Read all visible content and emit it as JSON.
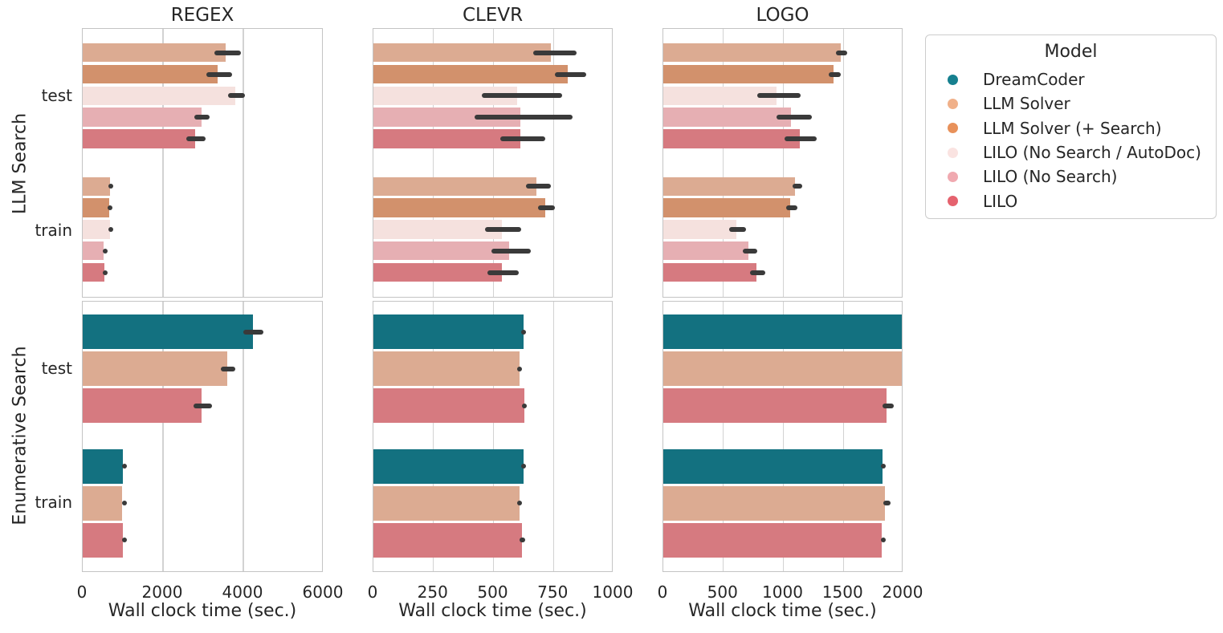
{
  "figure": {
    "background": "#ffffff"
  },
  "colors": {
    "text": "#262626",
    "grid": "#d2d2d2",
    "spine": "#c4c4c4",
    "error_bar": "#3a3a3a",
    "bars": {
      "dreamcoder": "#137180",
      "llm_solver": "#dcab92",
      "llm_solver_search": "#d2916c",
      "lilo_nosearch_autodoc": "#f5e1de",
      "lilo_nosearch": "#e6afb3",
      "lilo": "#d67a80"
    },
    "legend_markers": {
      "dreamcoder": "#16808f",
      "llm_solver": "#f0b089",
      "llm_solver_search": "#e8915a",
      "lilo_nosearch_autodoc": "#fae3e1",
      "lilo_nosearch": "#f0a9b0",
      "lilo": "#e5626e"
    }
  },
  "legend": {
    "title": "Model",
    "items": [
      {
        "key": "dreamcoder",
        "label": "DreamCoder"
      },
      {
        "key": "llm_solver",
        "label": "LLM Solver"
      },
      {
        "key": "llm_solver_search",
        "label": "LLM Solver (+ Search)"
      },
      {
        "key": "lilo_nosearch_autodoc",
        "label": "LILO (No Search / AutoDoc)"
      },
      {
        "key": "lilo_nosearch",
        "label": "LILO (No Search)"
      },
      {
        "key": "lilo",
        "label": "LILO"
      }
    ]
  },
  "chart_data": [
    {
      "type": "bar",
      "orientation": "horizontal",
      "title": "REGEX",
      "row_label": "LLM Search",
      "xlabel": "",
      "xlim": [
        0,
        6000
      ],
      "xticks": [
        0,
        2000,
        4000,
        6000
      ],
      "groups": [
        "test",
        "train"
      ],
      "series": [
        {
          "key": "llm_solver",
          "name": "LLM Solver",
          "values": [
            3560,
            680
          ],
          "errors": [
            [
              3280,
              3940
            ],
            [
              640,
              740
            ]
          ]
        },
        {
          "key": "llm_solver_search",
          "name": "LLM Solver (+ Search)",
          "values": [
            3360,
            660
          ],
          "errors": [
            [
              3080,
              3720
            ],
            [
              620,
              700
            ]
          ]
        },
        {
          "key": "lilo_nosearch_autodoc",
          "name": "LILO (No Search / AutoDoc)",
          "values": [
            3800,
            670
          ],
          "errors": [
            [
              3620,
              4040
            ],
            [
              630,
              710
            ]
          ]
        },
        {
          "key": "lilo_nosearch",
          "name": "LILO (No Search)",
          "values": [
            2960,
            520
          ],
          "errors": [
            [
              2780,
              3160
            ],
            [
              490,
              550
            ]
          ]
        },
        {
          "key": "lilo",
          "name": "LILO",
          "values": [
            2800,
            530
          ],
          "errors": [
            [
              2580,
              3060
            ],
            [
              495,
              565
            ]
          ]
        }
      ]
    },
    {
      "type": "bar",
      "orientation": "horizontal",
      "title": "CLEVR",
      "row_label": "LLM Search",
      "xlabel": "",
      "xlim": [
        0,
        1000
      ],
      "xticks": [
        0,
        250,
        500,
        750,
        1000
      ],
      "groups": [
        "test",
        "train"
      ],
      "series": [
        {
          "key": "llm_solver",
          "name": "LLM Solver",
          "values": [
            740,
            680
          ],
          "errors": [
            [
              665,
              845
            ],
            [
              635,
              740
            ]
          ]
        },
        {
          "key": "llm_solver_search",
          "name": "LLM Solver (+ Search)",
          "values": [
            810,
            715
          ],
          "errors": [
            [
              755,
              885
            ],
            [
              685,
              755
            ]
          ]
        },
        {
          "key": "lilo_nosearch_autodoc",
          "name": "LILO (No Search / AutoDoc)",
          "values": [
            600,
            535
          ],
          "errors": [
            [
              450,
              785
            ],
            [
              465,
              615
            ]
          ]
        },
        {
          "key": "lilo_nosearch",
          "name": "LILO (No Search)",
          "values": [
            612,
            565
          ],
          "errors": [
            [
              420,
              830
            ],
            [
              490,
              655
            ]
          ]
        },
        {
          "key": "lilo",
          "name": "LILO",
          "values": [
            612,
            535
          ],
          "errors": [
            [
              530,
              715
            ],
            [
              475,
              605
            ]
          ]
        }
      ]
    },
    {
      "type": "bar",
      "orientation": "horizontal",
      "title": "LOGO",
      "row_label": "LLM Search",
      "xlabel": "",
      "xlim": [
        0,
        2000
      ],
      "xticks": [
        0,
        500,
        1000,
        1500,
        2000
      ],
      "groups": [
        "test",
        "train"
      ],
      "series": [
        {
          "key": "llm_solver",
          "name": "LLM Solver",
          "values": [
            1480,
            1100
          ],
          "errors": [
            [
              1440,
              1530
            ],
            [
              1075,
              1155
            ]
          ]
        },
        {
          "key": "llm_solver_search",
          "name": "LLM Solver (+ Search)",
          "values": [
            1420,
            1060
          ],
          "errors": [
            [
              1380,
              1480
            ],
            [
              1025,
              1115
            ]
          ]
        },
        {
          "key": "lilo_nosearch_autodoc",
          "name": "LILO (No Search / AutoDoc)",
          "values": [
            945,
            610
          ],
          "errors": [
            [
              785,
              1145
            ],
            [
              550,
              690
            ]
          ]
        },
        {
          "key": "lilo_nosearch",
          "name": "LILO (No Search)",
          "values": [
            1065,
            710
          ],
          "errors": [
            [
              945,
              1235
            ],
            [
              665,
              785
            ]
          ]
        },
        {
          "key": "lilo",
          "name": "LILO",
          "values": [
            1135,
            775
          ],
          "errors": [
            [
              1010,
              1280
            ],
            [
              720,
              850
            ]
          ]
        }
      ]
    },
    {
      "type": "bar",
      "orientation": "horizontal",
      "title": "REGEX",
      "row_label": "Enumerative Search",
      "xlabel": "Wall clock time (sec.)",
      "xlim": [
        0,
        6000
      ],
      "xticks": [
        0,
        2000,
        4000,
        6000
      ],
      "groups": [
        "test",
        "train"
      ],
      "series": [
        {
          "key": "dreamcoder",
          "name": "DreamCoder",
          "values": [
            4240,
            1000
          ],
          "errors": [
            [
              4000,
              4500
            ],
            [
              985,
              1015
            ]
          ]
        },
        {
          "key": "llm_solver",
          "name": "LLM Solver",
          "values": [
            3600,
            985
          ],
          "errors": [
            [
              3440,
              3790
            ],
            [
              970,
              1000
            ]
          ]
        },
        {
          "key": "lilo",
          "name": "LILO",
          "values": [
            2960,
            1000
          ],
          "errors": [
            [
              2760,
              3220
            ],
            [
              985,
              1020
            ]
          ]
        }
      ]
    },
    {
      "type": "bar",
      "orientation": "horizontal",
      "title": "CLEVR",
      "row_label": "Enumerative Search",
      "xlabel": "Wall clock time (sec.)",
      "xlim": [
        0,
        1000
      ],
      "xticks": [
        0,
        250,
        500,
        750,
        1000
      ],
      "groups": [
        "test",
        "train"
      ],
      "series": [
        {
          "key": "dreamcoder",
          "name": "DreamCoder",
          "values": [
            625,
            625
          ],
          "errors": [
            [
              615,
              635
            ],
            [
              615,
              635
            ]
          ]
        },
        {
          "key": "llm_solver",
          "name": "LLM Solver",
          "values": [
            610,
            610
          ],
          "errors": [
            [
              600,
              620
            ],
            [
              600,
              620
            ]
          ]
        },
        {
          "key": "lilo",
          "name": "LILO",
          "values": [
            628,
            620
          ],
          "errors": [
            [
              618,
              638
            ],
            [
              610,
              632
            ]
          ]
        }
      ]
    },
    {
      "type": "bar",
      "orientation": "horizontal",
      "title": "LOGO",
      "row_label": "Enumerative Search",
      "xlabel": "Wall clock time (sec.)",
      "xlim": [
        0,
        2000
      ],
      "xticks": [
        0,
        500,
        1000,
        1500,
        2000
      ],
      "groups": [
        "test",
        "train"
      ],
      "series": [
        {
          "key": "dreamcoder",
          "name": "DreamCoder",
          "values": [
            1995,
            1825
          ],
          "errors": [
            [
              1985,
              2005
            ],
            [
              1815,
              1835
            ]
          ]
        },
        {
          "key": "llm_solver",
          "name": "LLM Solver",
          "values": [
            2000,
            1845
          ],
          "errors": [
            null,
            [
              1835,
              1895
            ]
          ]
        },
        {
          "key": "lilo",
          "name": "LILO",
          "values": [
            1860,
            1820
          ],
          "errors": [
            [
              1825,
              1920
            ],
            [
              1810,
              1830
            ]
          ]
        }
      ]
    }
  ]
}
